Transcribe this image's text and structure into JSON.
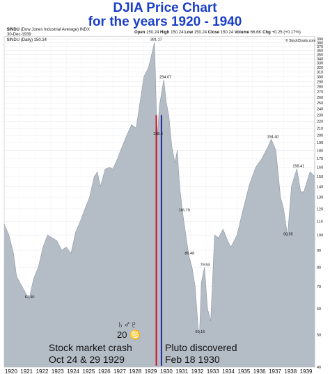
{
  "title_line1": "DJIA Price Chart",
  "title_line2": "for the years 1920 - 1940",
  "header": {
    "symbol": "$INDU",
    "desc": "(Dow Jones Industrial Average)",
    "exchange": "INDX",
    "date": "30-Dec-1939",
    "open_label": "Open",
    "open": "150.24",
    "high_label": "High",
    "high": "150.24",
    "low_label": "Low",
    "low": "150.24",
    "close_label": "Close",
    "close": "150.24",
    "volume_label": "Volume",
    "volume": "66.6K",
    "chg_label": "Chg",
    "chg": "+0.25 (+0.17%)",
    "legend": "$INDU (Daily) 150.24",
    "watermark": "© StockCharts.com"
  },
  "annotations": {
    "glyphs_line1": "♄♂♇",
    "glyphs_line2": "20 ♋",
    "crash_line1": "Stock market crash",
    "crash_line2": "Oct 24 & 29 1929",
    "pluto_line1": "Pluto discovered",
    "pluto_line2": "Feb 18 1930"
  },
  "colors": {
    "area": "#b4bcc6",
    "area_edge": "#8e98a4",
    "crash_line": "#d0102a",
    "pluto_line": "#1a2a9a",
    "title": "#1a3ec8"
  },
  "chart_data": {
    "type": "area",
    "y_scale": "log",
    "ylim": [
      40,
      390
    ],
    "yticks": [
      40,
      50,
      60,
      70,
      80,
      90,
      100,
      110,
      120,
      130,
      140,
      150,
      160,
      170,
      180,
      190,
      200,
      210,
      220,
      230,
      240,
      250,
      260,
      270,
      280,
      290,
      300,
      310,
      320,
      330,
      340,
      350,
      360,
      370,
      380,
      390
    ],
    "xlim": [
      1920,
      1940
    ],
    "xticks": [
      "1920",
      "1921",
      "1922",
      "1923",
      "1924",
      "1925",
      "1926",
      "1927",
      "1928",
      "1929",
      "1930",
      "1931",
      "1932",
      "1933",
      "1934",
      "1935",
      "1936",
      "1937",
      "1938",
      "1939"
    ],
    "x": [
      1920.0,
      1920.3,
      1920.6,
      1920.8,
      1921.0,
      1921.3,
      1921.6,
      1921.9,
      1922.2,
      1922.5,
      1922.8,
      1923.1,
      1923.4,
      1923.7,
      1924.0,
      1924.3,
      1924.6,
      1924.9,
      1925.2,
      1925.5,
      1925.8,
      1926.0,
      1926.2,
      1926.5,
      1926.8,
      1927.0,
      1927.3,
      1927.6,
      1927.9,
      1928.2,
      1928.5,
      1928.8,
      1929.0,
      1929.3,
      1929.5,
      1929.68,
      1929.75,
      1929.8,
      1929.87,
      1930.0,
      1930.28,
      1930.45,
      1930.6,
      1930.8,
      1931.0,
      1931.15,
      1931.3,
      1931.5,
      1931.7,
      1931.9,
      1932.1,
      1932.3,
      1932.5,
      1932.58,
      1932.7,
      1932.9,
      1933.1,
      1933.3,
      1933.55,
      1933.8,
      1934.1,
      1934.4,
      1934.6,
      1935.0,
      1935.4,
      1935.8,
      1936.2,
      1936.6,
      1937.0,
      1937.2,
      1937.5,
      1937.8,
      1938.0,
      1938.25,
      1938.5,
      1938.85,
      1939.1,
      1939.3,
      1939.7,
      1940.0
    ],
    "y": [
      108,
      100,
      88,
      75,
      72,
      68,
      64,
      74,
      80,
      92,
      100,
      98,
      96,
      90,
      92,
      88,
      102,
      110,
      120,
      130,
      150,
      155,
      140,
      158,
      160,
      158,
      170,
      185,
      200,
      215,
      210,
      260,
      300,
      320,
      350,
      381.17,
      300,
      240,
      198.6,
      245,
      294.07,
      250,
      230,
      185,
      165,
      180,
      140,
      116.79,
      100,
      86.48,
      80,
      70,
      52,
      50.16,
      72,
      79.93,
      60,
      55,
      100,
      98,
      104,
      96,
      92,
      100,
      120,
      142,
      160,
      170,
      185,
      194.4,
      180,
      130,
      120,
      98.95,
      140,
      158.41,
      135,
      135,
      155,
      150.24
    ],
    "data_labels": [
      {
        "x": 1929.68,
        "y": 381.17,
        "text": "381.17"
      },
      {
        "x": 1930.28,
        "y": 294.07,
        "text": "294.07"
      },
      {
        "x": 1929.87,
        "y": 198.6,
        "text": "198.6"
      },
      {
        "x": 1931.5,
        "y": 116.79,
        "text": "116.79"
      },
      {
        "x": 1931.9,
        "y": 86.48,
        "text": "86.48"
      },
      {
        "x": 1932.9,
        "y": 79.93,
        "text": "79.93"
      },
      {
        "x": 1932.58,
        "y": 50.16,
        "text": "50.16"
      },
      {
        "x": 1921.6,
        "y": 63.9,
        "text": "63.90"
      },
      {
        "x": 1937.2,
        "y": 194.4,
        "text": "194.40"
      },
      {
        "x": 1938.25,
        "y": 98.95,
        "text": "98.95"
      },
      {
        "x": 1938.85,
        "y": 158.41,
        "text": "158.41"
      }
    ],
    "vlines": [
      {
        "x": 1929.8,
        "color": "#d0102a"
      },
      {
        "x": 1930.13,
        "color": "#1a2a9a"
      }
    ]
  }
}
